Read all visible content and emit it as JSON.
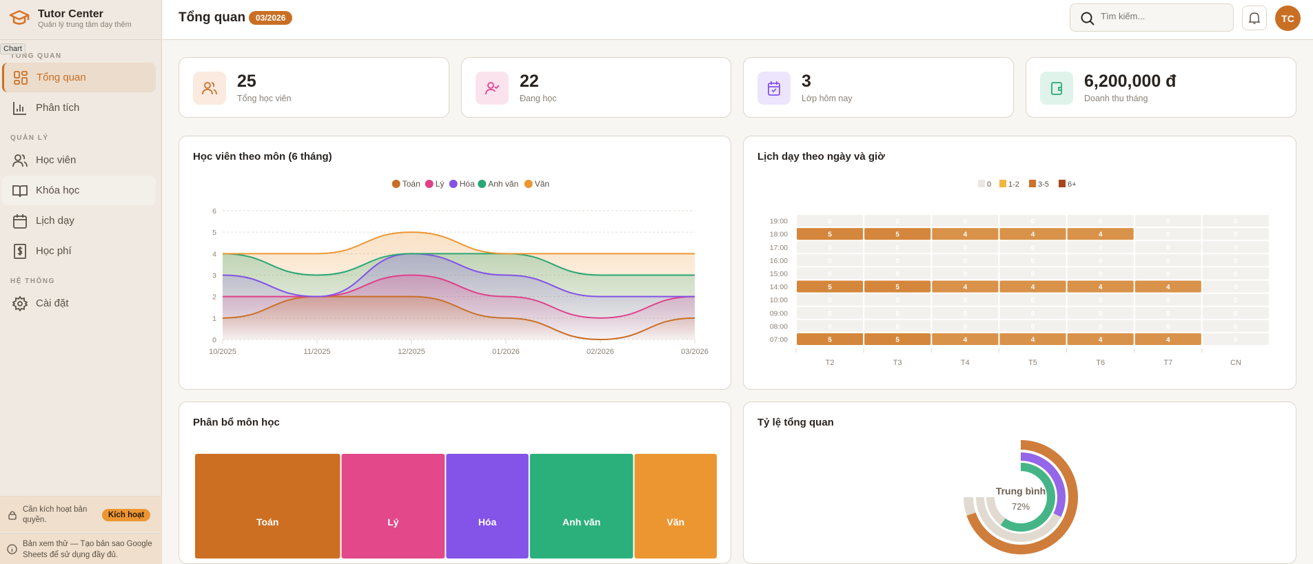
{
  "brand": {
    "title": "Tutor Center",
    "subtitle": "Quản lý trung tâm dạy thêm"
  },
  "tooltip": "Chart",
  "sidebar": {
    "sections": [
      "TỔNG QUAN",
      "QUẢN LÝ",
      "HỆ THỐNG"
    ],
    "items": [
      {
        "label": "Tổng quan",
        "icon": "dashboard-icon",
        "active": true
      },
      {
        "label": "Phân tích",
        "icon": "bar-chart-icon"
      },
      {
        "label": "Học viên",
        "icon": "users-icon"
      },
      {
        "label": "Khóa học",
        "icon": "book-icon"
      },
      {
        "label": "Lịch dạy",
        "icon": "calendar-icon"
      },
      {
        "label": "Học phí",
        "icon": "receipt-dollar-icon"
      },
      {
        "label": "Cài đặt",
        "icon": "gear-icon"
      }
    ],
    "license": {
      "text": "Cần kích hoạt bản quyền.",
      "button": "Kích hoạt"
    },
    "info": "Bản xem thử — Tạo bản sao Google Sheets để sử dụng đầy đủ."
  },
  "header": {
    "title": "Tổng quan",
    "badge": "03/2026",
    "search_placeholder": "Tìm kiếm...",
    "avatar": "TC"
  },
  "stats": [
    {
      "value": "25",
      "label": "Tổng học viên",
      "icon": "users-icon",
      "color": "#c96f24",
      "bg": "#faeadf"
    },
    {
      "value": "22",
      "label": "Đang học",
      "icon": "user-check-icon",
      "color": "#e0408a",
      "bg": "#fbe3ee"
    },
    {
      "value": "3",
      "label": "Lớp hôm nay",
      "icon": "calendar-check-icon",
      "color": "#8352e6",
      "bg": "#ede5fc"
    },
    {
      "value": "6,200,000 đ",
      "label": "Doanh thu tháng",
      "icon": "wallet-icon",
      "color": "#2aa674",
      "bg": "#dff3ea"
    }
  ],
  "chart_data": [
    {
      "type": "area",
      "title": "Học viên theo môn (6 tháng)",
      "x": [
        "10/2025",
        "11/2025",
        "12/2025",
        "01/2026",
        "02/2026",
        "03/2026"
      ],
      "ylim": [
        0,
        6
      ],
      "yticks": [
        0,
        1,
        2,
        3,
        4,
        5,
        6
      ],
      "grid": true,
      "legend": "top",
      "series": [
        {
          "name": "Toán",
          "color": "#c96f24",
          "values": [
            1,
            2,
            2,
            1,
            0,
            1
          ]
        },
        {
          "name": "Lý",
          "color": "#e0408a",
          "values": [
            2,
            2,
            3,
            2,
            1,
            2
          ]
        },
        {
          "name": "Hóa",
          "color": "#8352e6",
          "values": [
            3,
            2,
            4,
            3,
            2,
            2
          ]
        },
        {
          "name": "Anh văn",
          "color": "#2aa674",
          "values": [
            4,
            3,
            4,
            4,
            3,
            3
          ]
        },
        {
          "name": "Văn",
          "color": "#ec9632",
          "values": [
            4,
            4,
            5,
            4,
            4,
            4
          ]
        }
      ]
    },
    {
      "type": "heatmap",
      "title": "Lịch dạy theo ngày và giờ",
      "legend": [
        {
          "label": "0",
          "color": "#ebe6df"
        },
        {
          "label": "1-2",
          "color": "#f2b63e"
        },
        {
          "label": "3-5",
          "color": "#cf7229"
        },
        {
          "label": "6+",
          "color": "#a8461a"
        }
      ],
      "columns": [
        "T2",
        "T3",
        "T4",
        "T5",
        "T6",
        "T7",
        "CN"
      ],
      "rows": [
        "19:00",
        "18:00",
        "17:00",
        "16:00",
        "15:00",
        "14:00",
        "10:00",
        "09:00",
        "08:00",
        "07:00"
      ],
      "values": [
        [
          0,
          0,
          0,
          0,
          0,
          0,
          0
        ],
        [
          5,
          5,
          4,
          4,
          4,
          0,
          0
        ],
        [
          0,
          0,
          0,
          0,
          0,
          0,
          0
        ],
        [
          0,
          0,
          0,
          0,
          0,
          0,
          0
        ],
        [
          0,
          0,
          0,
          0,
          0,
          0,
          0
        ],
        [
          5,
          5,
          4,
          4,
          4,
          4,
          0
        ],
        [
          0,
          0,
          0,
          0,
          0,
          0,
          0
        ],
        [
          0,
          0,
          0,
          0,
          0,
          0,
          0
        ],
        [
          0,
          0,
          0,
          0,
          0,
          0,
          0
        ],
        [
          5,
          5,
          4,
          4,
          4,
          4,
          0
        ]
      ]
    },
    {
      "type": "treemap",
      "title": "Phân bổ môn học",
      "categories": [
        "Toán",
        "Lý",
        "Hóa",
        "Anh văn",
        "Văn"
      ],
      "values": [
        7,
        5,
        4,
        5,
        4
      ],
      "colors": [
        "#cc6f22",
        "#e2488a",
        "#8453e8",
        "#2bb07b",
        "#ec9632"
      ]
    },
    {
      "type": "radial-gauge",
      "title": "Tỷ lệ tổng quan",
      "center_label": "Trung bình",
      "center_value": "72%",
      "rings": [
        {
          "color": "#cf7d3b",
          "value": 93
        },
        {
          "color": "#9466e8",
          "value": 43
        },
        {
          "color": "#45b587",
          "value": 80
        }
      ],
      "track_color": "#e0dad0"
    }
  ]
}
